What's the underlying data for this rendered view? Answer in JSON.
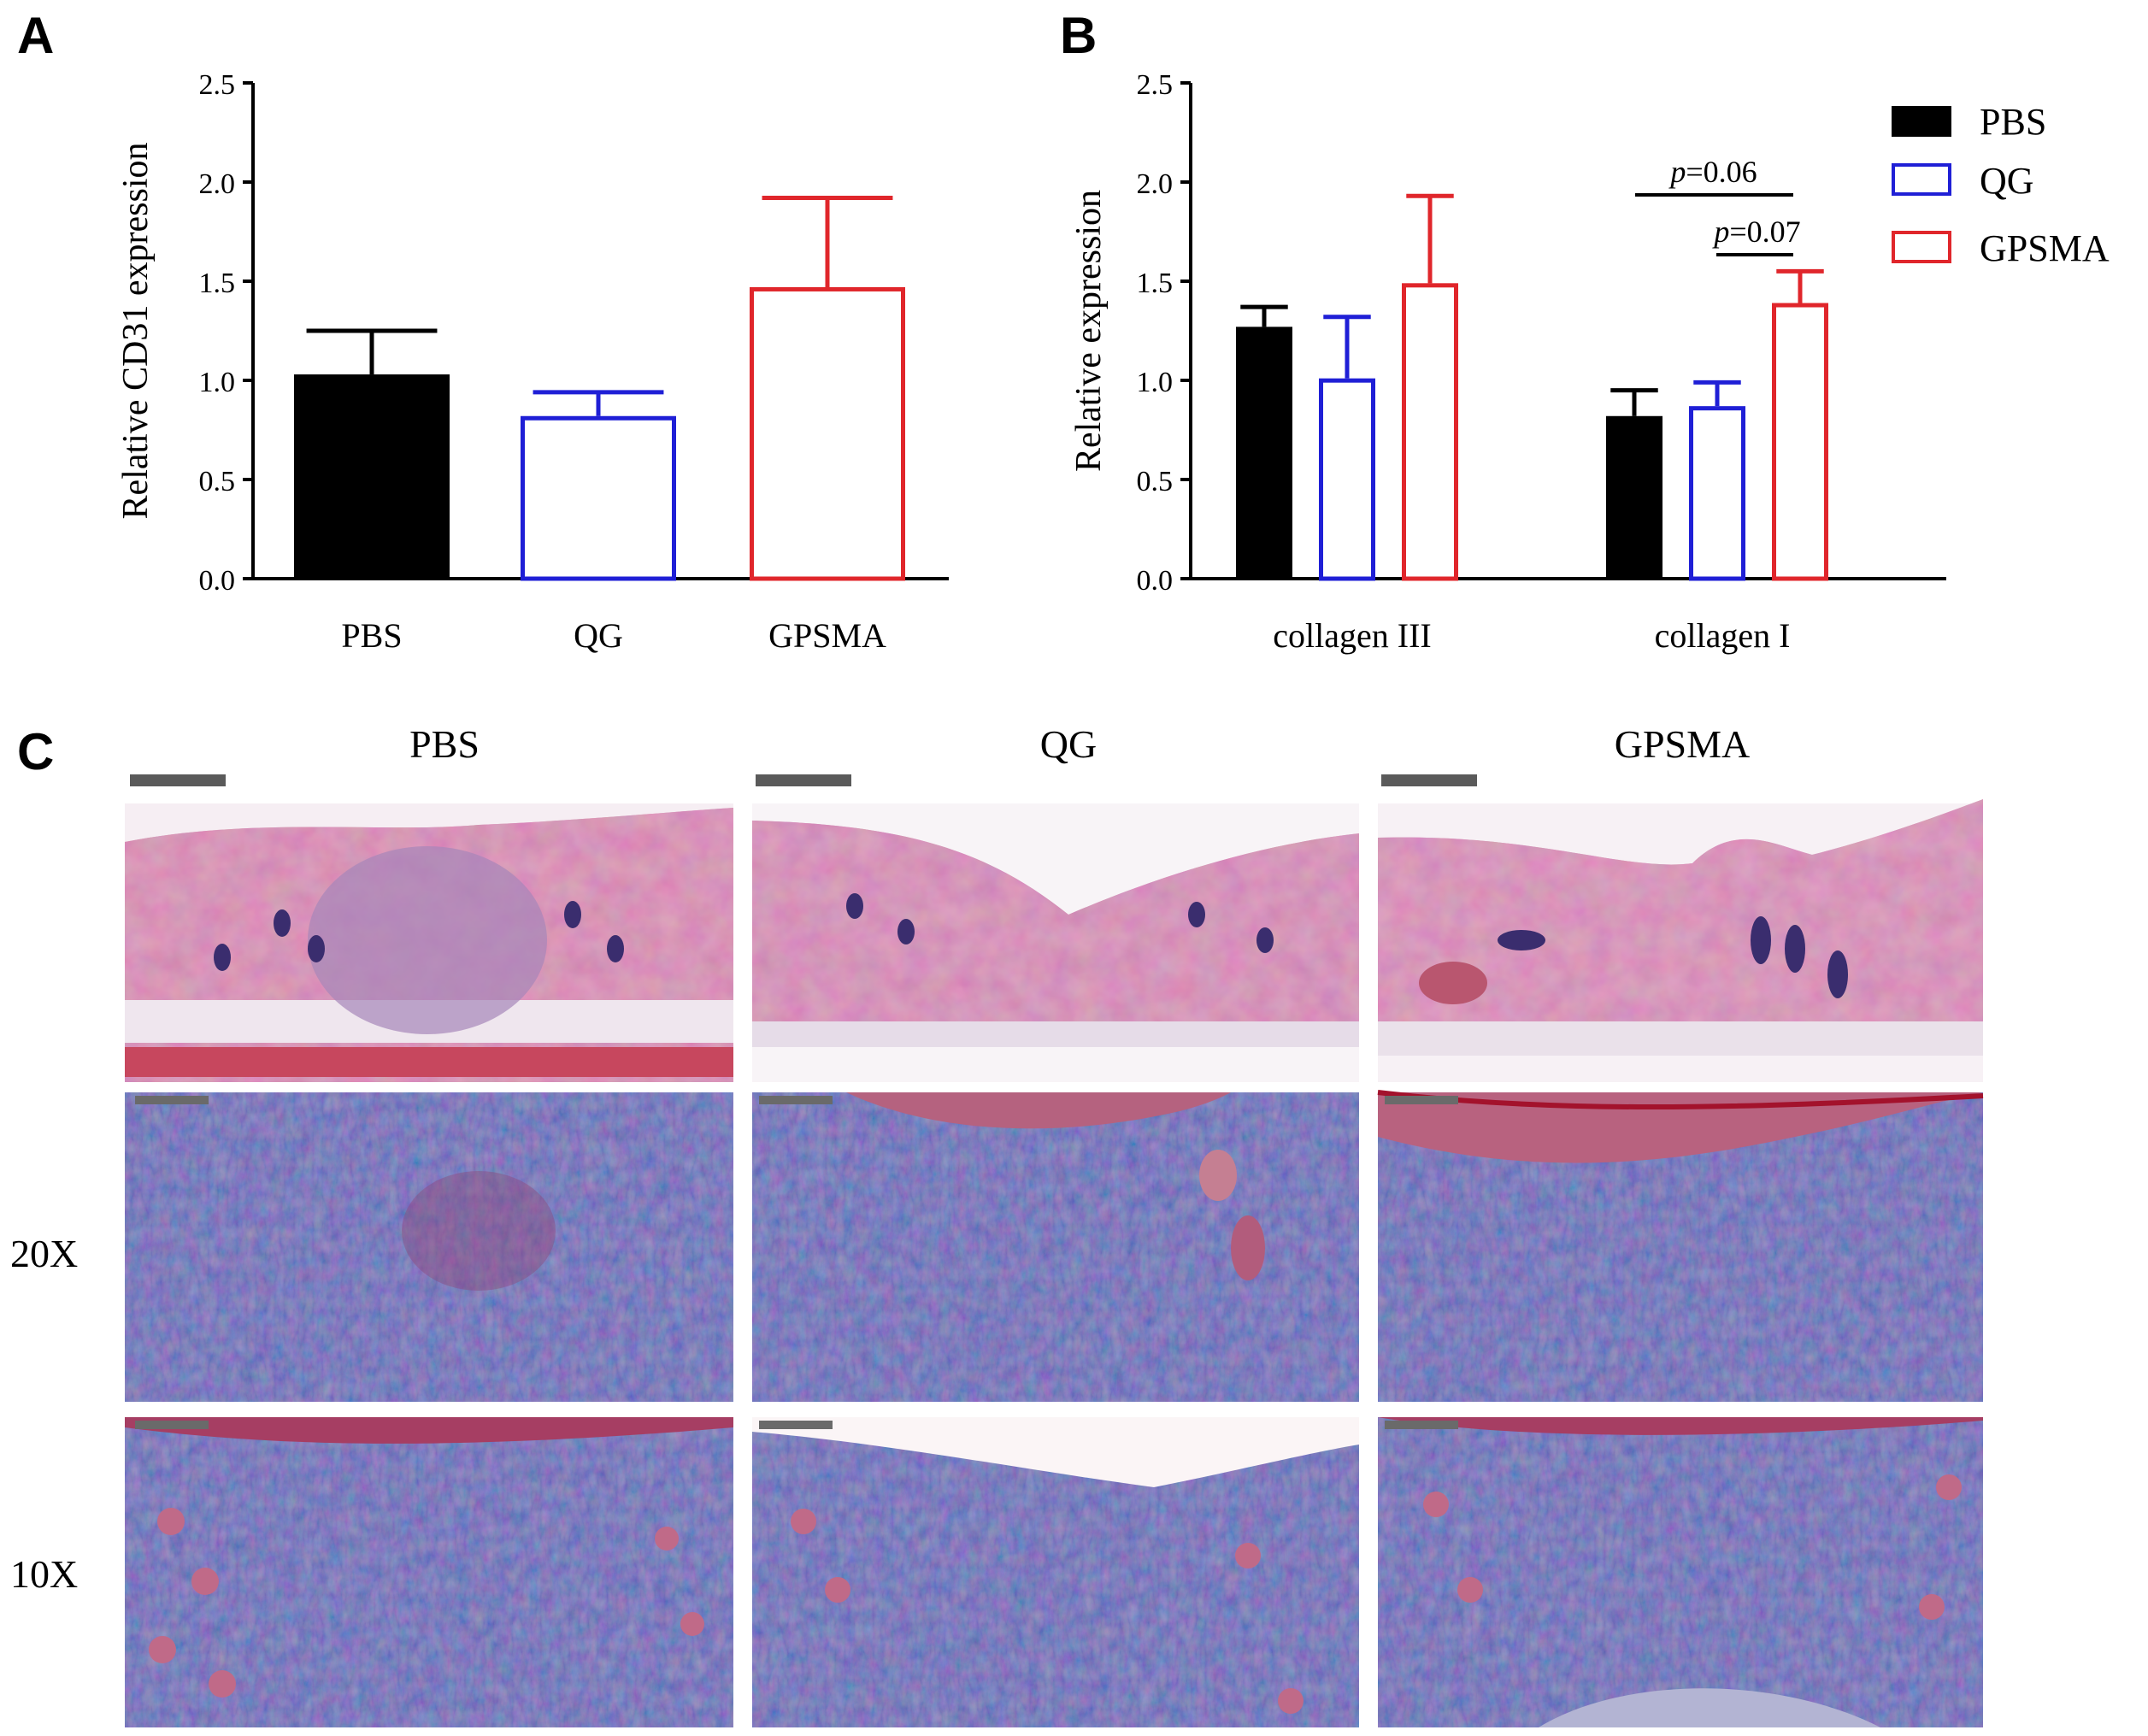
{
  "panels": {
    "a": "A",
    "b": "B",
    "c": "C"
  },
  "colors": {
    "PBS": "#000000",
    "QG": "#1f1fd6",
    "GPSMA": "#e0262b"
  },
  "chart_data": [
    {
      "type": "bar",
      "panel": "A",
      "categories": [
        "PBS",
        "QG",
        "GPSMA"
      ],
      "values": [
        1.03,
        0.82,
        1.47
      ],
      "errors": [
        0.22,
        0.12,
        0.45
      ],
      "styles": [
        "filled",
        "outline",
        "outline"
      ],
      "yticks": [
        "0.0",
        "0.5",
        "1.0",
        "1.5",
        "2.0",
        "2.5"
      ],
      "ylim": [
        0,
        2.5
      ],
      "ylabel": "Relative CD31 expression",
      "xlabel": ""
    },
    {
      "type": "bar",
      "panel": "B",
      "categories": [
        "collagen III",
        "collagen I"
      ],
      "series": [
        {
          "name": "PBS",
          "values": [
            1.27,
            0.82
          ],
          "errors": [
            0.1,
            0.13
          ],
          "style": "filled"
        },
        {
          "name": "QG",
          "values": [
            1.01,
            0.87
          ],
          "errors": [
            0.31,
            0.12
          ],
          "style": "outline"
        },
        {
          "name": "GPSMA",
          "values": [
            1.49,
            1.39
          ],
          "errors": [
            0.44,
            0.16
          ],
          "style": "outline"
        }
      ],
      "yticks": [
        "0.0",
        "0.5",
        "1.0",
        "1.5",
        "2.0",
        "2.5"
      ],
      "ylim": [
        0,
        2.5
      ],
      "ylabel": "Relative expression",
      "xlabel": "",
      "legend": [
        "PBS",
        "QG",
        "GPSMA"
      ],
      "legend_position": "top-right",
      "annotations": [
        {
          "text_p": "p",
          "text_val": "=0.06",
          "between": [
            "PBS",
            "GPSMA"
          ],
          "category": "collagen I"
        },
        {
          "text_p": "p",
          "text_val": "=0.07",
          "between": [
            "QG",
            "GPSMA"
          ],
          "category": "collagen I"
        }
      ]
    }
  ],
  "micrographs": {
    "columns": [
      "PBS",
      "QG",
      "GPSMA"
    ],
    "rows": [
      "",
      "20X",
      "10X"
    ]
  }
}
